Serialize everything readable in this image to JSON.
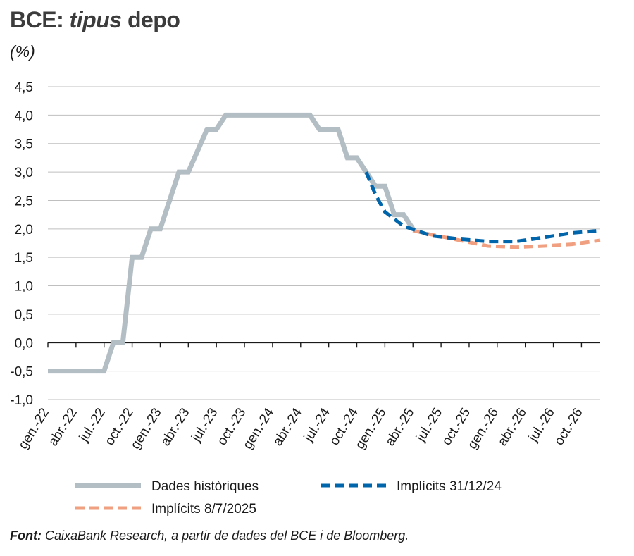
{
  "title_prefix": "BCE:",
  "title_italic": "tipus",
  "title_suffix": "depo",
  "unit": "(%)",
  "source_label": "Font:",
  "source_text": "CaixaBank Research, a partir de dades del BCE i de Bloomberg.",
  "chart_data": {
    "type": "line",
    "ylim": [
      -1.0,
      4.5
    ],
    "yticks": [
      4.5,
      4.0,
      3.5,
      3.0,
      2.5,
      2.0,
      1.5,
      1.0,
      0.5,
      0.0,
      -0.5,
      -1.0
    ],
    "ytick_labels": [
      "4,5",
      "4,0",
      "3,5",
      "3,0",
      "2,5",
      "2,0",
      "1,5",
      "1,0",
      "0,5",
      "0,0",
      "-0,5",
      "-1,0"
    ],
    "xticks": [
      "gen.-22",
      "abr.-22",
      "jul.-22",
      "oct.-22",
      "gen.-23",
      "abr.-23",
      "jul.-23",
      "oct.-23",
      "gen.-24",
      "abr.-24",
      "jul.-24",
      "oct.-24",
      "gen.-25",
      "abr.-25",
      "jul.-25",
      "oct.-25",
      "gen.-26",
      "abr.-26",
      "jul.-26",
      "oct.-26"
    ],
    "grid": true,
    "legend_position": "bottom",
    "series": [
      {
        "name": "Dades històriques",
        "color": "#b3bec4",
        "style": "solid",
        "points": [
          [
            "2022-01",
            -0.5
          ],
          [
            "2022-07",
            -0.5
          ],
          [
            "2022-08",
            0.0
          ],
          [
            "2022-09",
            0.0
          ],
          [
            "2022-10",
            1.5
          ],
          [
            "2022-11",
            1.5
          ],
          [
            "2022-12",
            2.0
          ],
          [
            "2023-01",
            2.0
          ],
          [
            "2023-03",
            3.0
          ],
          [
            "2023-04",
            3.0
          ],
          [
            "2023-06",
            3.75
          ],
          [
            "2023-07",
            3.75
          ],
          [
            "2023-08",
            4.0
          ],
          [
            "2024-05",
            4.0
          ],
          [
            "2024-06",
            3.75
          ],
          [
            "2024-08",
            3.75
          ],
          [
            "2024-09",
            3.25
          ],
          [
            "2024-10",
            3.25
          ],
          [
            "2024-12",
            2.75
          ],
          [
            "2025-01",
            2.75
          ],
          [
            "2025-02",
            2.25
          ],
          [
            "2025-03",
            2.25
          ],
          [
            "2025-04",
            2.0
          ]
        ]
      },
      {
        "name": "Implícits 31/12/24",
        "color": "#0065ab",
        "style": "dashed",
        "points": [
          [
            "2024-11",
            3.0
          ],
          [
            "2024-12",
            2.6
          ],
          [
            "2025-01",
            2.3
          ],
          [
            "2025-03",
            2.05
          ],
          [
            "2025-06",
            1.88
          ],
          [
            "2025-09",
            1.82
          ],
          [
            "2025-12",
            1.78
          ],
          [
            "2026-03",
            1.78
          ],
          [
            "2026-06",
            1.85
          ],
          [
            "2026-09",
            1.93
          ],
          [
            "2026-12",
            1.97
          ]
        ]
      },
      {
        "name": "Implícits 8/7/2025",
        "color": "#f0a080",
        "style": "dashed",
        "points": [
          [
            "2025-04",
            1.97
          ],
          [
            "2025-06",
            1.9
          ],
          [
            "2025-09",
            1.8
          ],
          [
            "2025-12",
            1.7
          ],
          [
            "2026-03",
            1.68
          ],
          [
            "2026-06",
            1.7
          ],
          [
            "2026-09",
            1.73
          ],
          [
            "2026-12",
            1.8
          ]
        ]
      }
    ]
  }
}
